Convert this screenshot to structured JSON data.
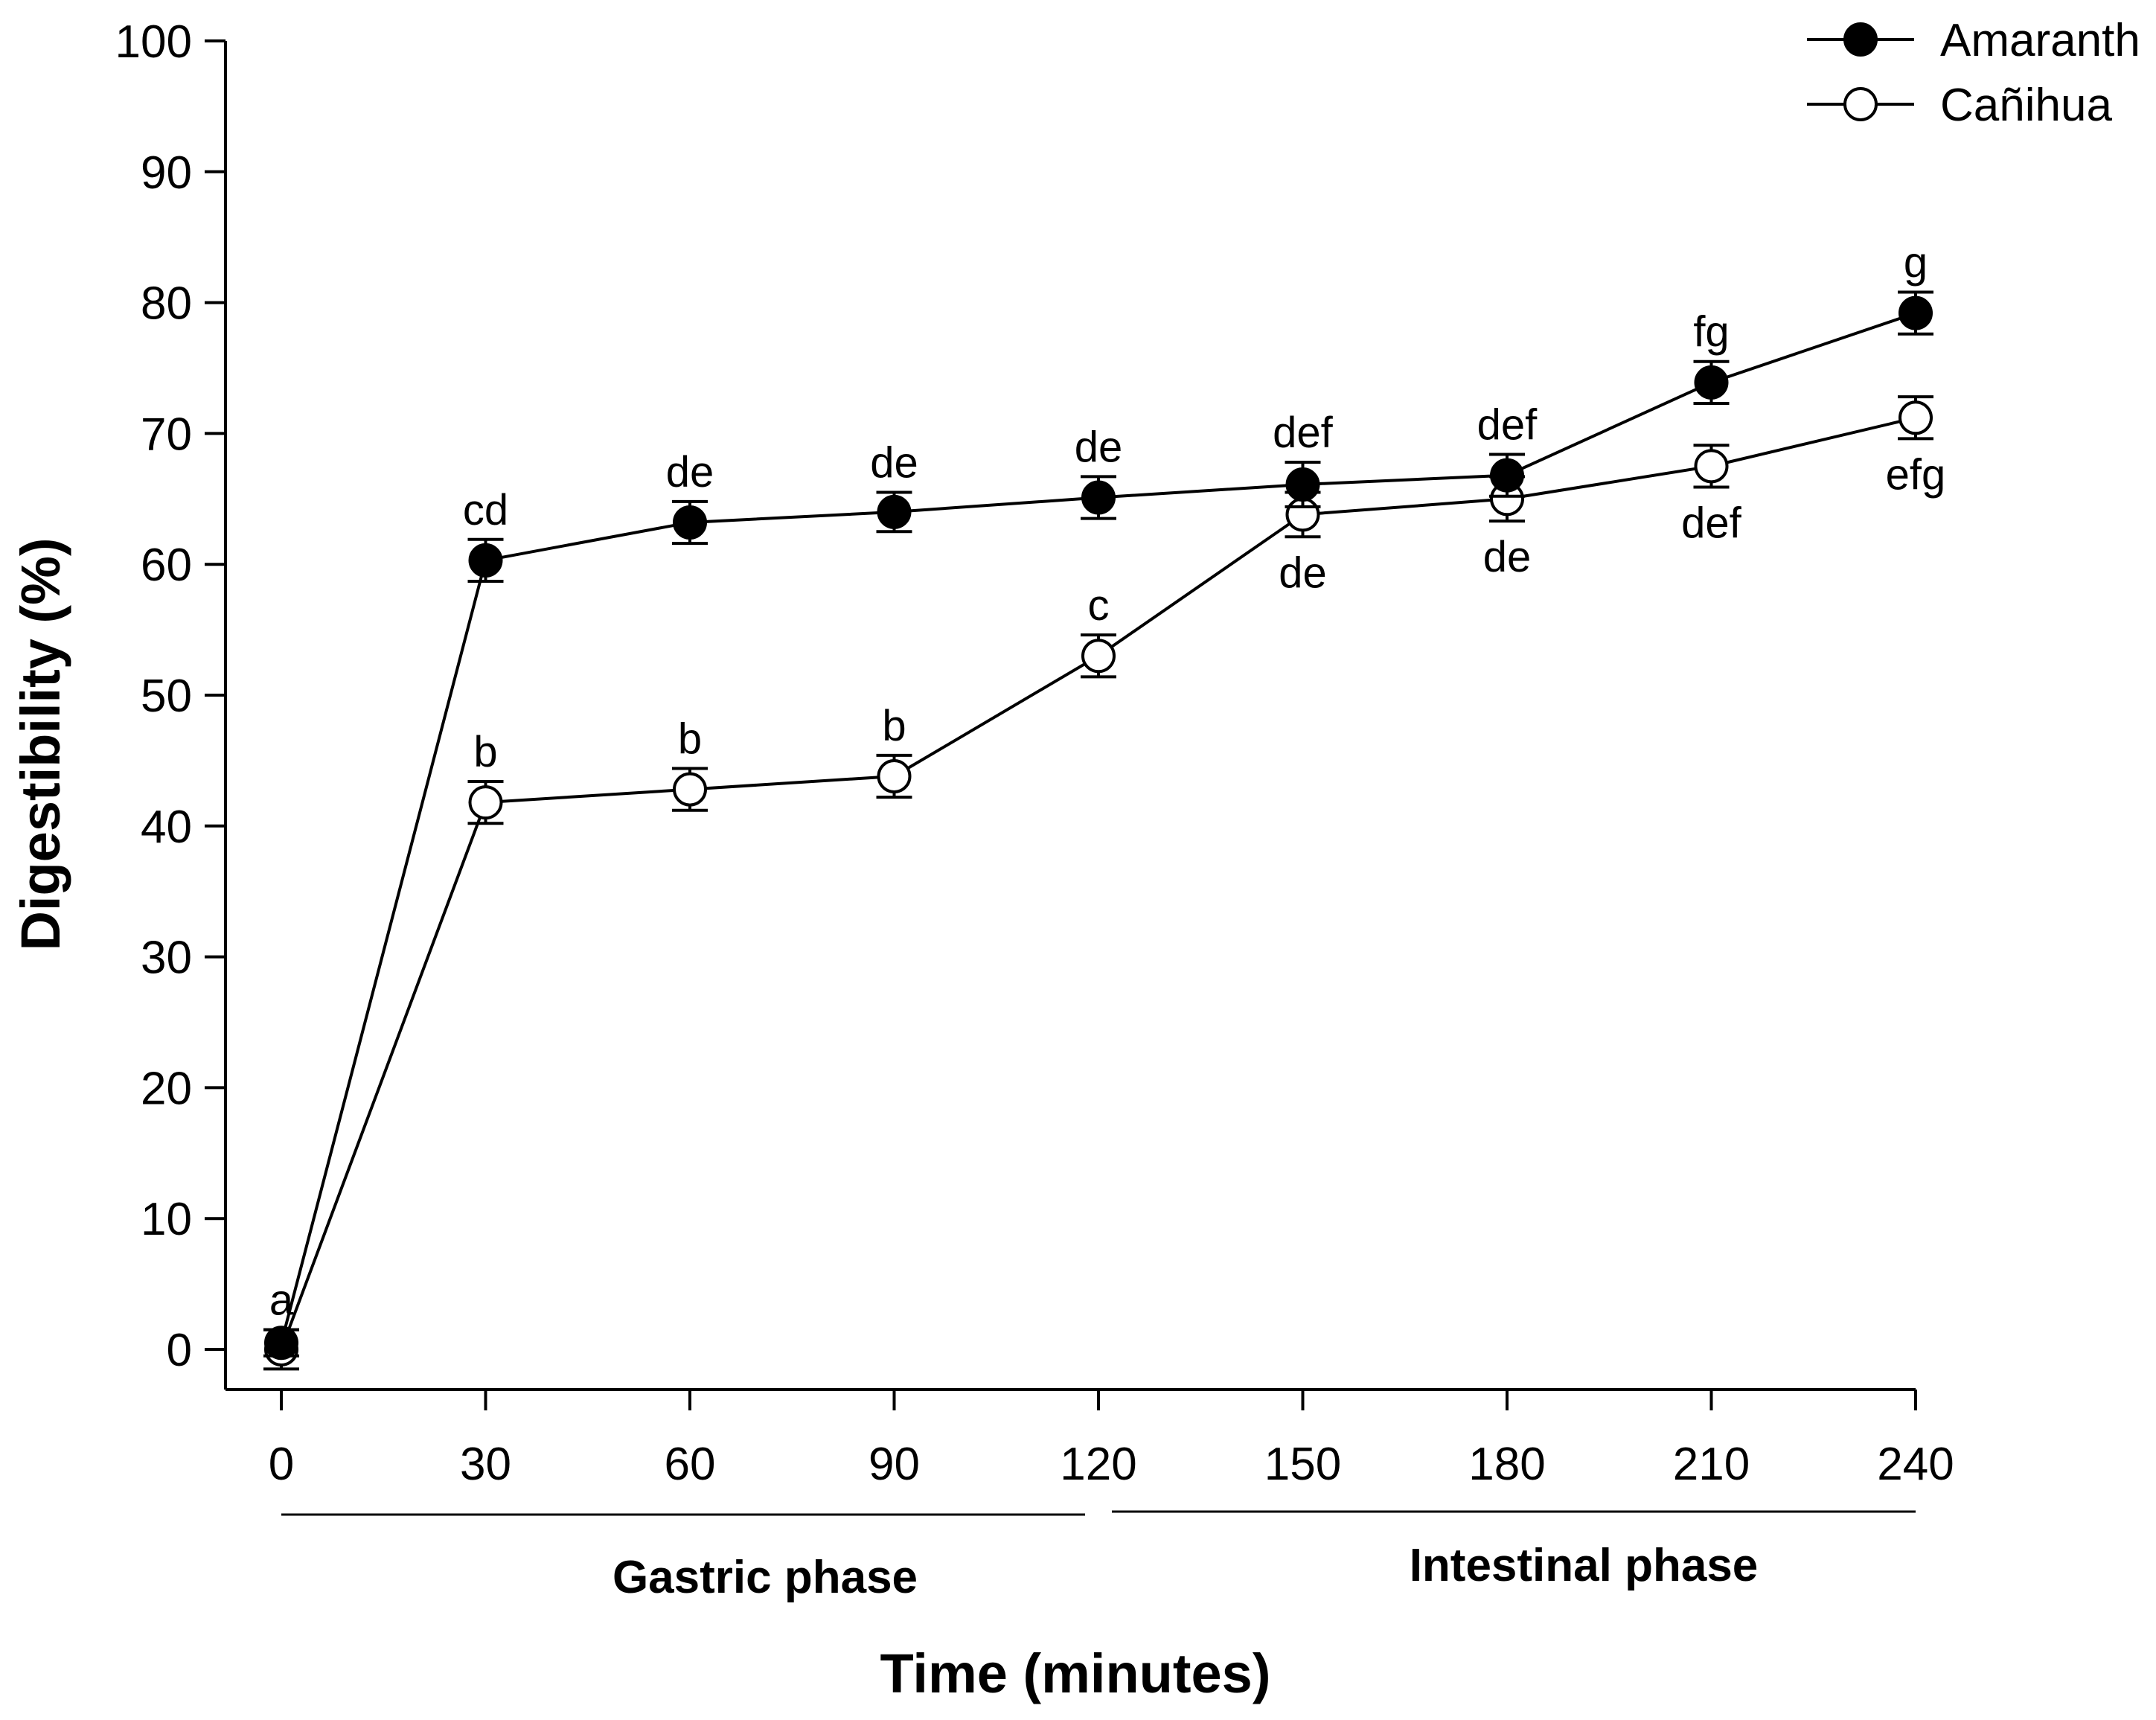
{
  "chart_data": {
    "type": "line",
    "title": "",
    "xlabel": "Time (minutes)",
    "ylabel": "Digestibility (%)",
    "xlim": [
      0,
      240
    ],
    "ylim": [
      0,
      100
    ],
    "x_ticks": [
      "0",
      "30",
      "60",
      "90",
      "120",
      "150",
      "180",
      "210",
      "240"
    ],
    "y_ticks": [
      "0",
      "10",
      "20",
      "30",
      "40",
      "50",
      "60",
      "70",
      "80",
      "90",
      "100"
    ],
    "grid": false,
    "legend_position": "top-right",
    "phases": [
      {
        "label": "Gastric phase",
        "x_start": 0,
        "x_end": 120
      },
      {
        "label": "Intestinal phase",
        "x_start": 120,
        "x_end": 240
      }
    ],
    "series": [
      {
        "name": "Amaranth",
        "marker": "filled-circle",
        "label_side": "above",
        "x": [
          0,
          30,
          60,
          90,
          120,
          150,
          180,
          210,
          240
        ],
        "values": [
          0.5,
          60.3,
          63.2,
          64.0,
          65.1,
          66.1,
          66.8,
          73.9,
          79.2
        ],
        "errors": [
          1.0,
          1.6,
          1.6,
          1.5,
          1.6,
          1.7,
          1.6,
          1.6,
          1.6
        ],
        "labels": [
          "",
          "cd",
          "de",
          "de",
          "de",
          "def",
          "def",
          "fg",
          "g"
        ]
      },
      {
        "name": "Cañihua",
        "marker": "open-circle",
        "label_side": "below",
        "x": [
          0,
          30,
          60,
          90,
          120,
          150,
          180,
          210,
          240
        ],
        "values": [
          0.0,
          41.8,
          42.8,
          43.8,
          53.0,
          63.8,
          65.0,
          67.5,
          71.2
        ],
        "errors": [
          1.5,
          1.6,
          1.6,
          1.6,
          1.6,
          1.7,
          1.7,
          1.6,
          1.6
        ],
        "labels": [
          "a",
          "b",
          "b",
          "b",
          "c",
          "de",
          "de",
          "def",
          "efg"
        ],
        "labels_below": [
          false,
          false,
          false,
          false,
          false,
          true,
          true,
          true,
          true
        ]
      }
    ],
    "colors": {
      "line": "#000000",
      "filled_marker": "#000000",
      "open_marker_fill": "#ffffff"
    }
  }
}
